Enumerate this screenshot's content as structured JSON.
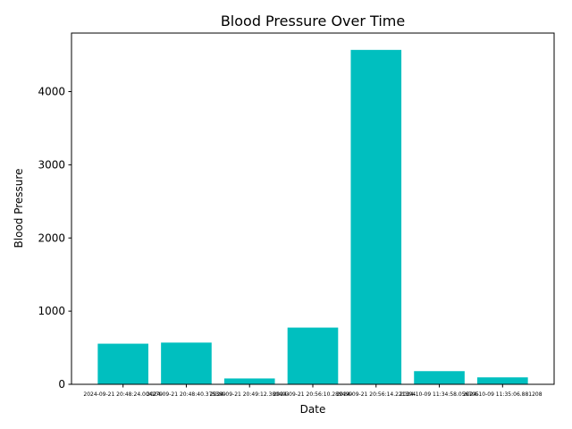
{
  "chart_data": {
    "type": "bar",
    "title": "Blood Pressure Over Time",
    "xlabel": "Date",
    "ylabel": "Blood Pressure",
    "categories": [
      "2024-09-21 20:48:24.004279",
      "2024-09-21 20:48:40.375389",
      "2024-09-21 20:49:12.380403",
      "2024-09-21 20:56:10.289499",
      "2024-09-21 20:56:14.221304",
      "2024-10-09 11:34:58.056705",
      "2024-10-09 11:35:06.881208"
    ],
    "values": [
      555,
      570,
      80,
      775,
      4570,
      180,
      95
    ],
    "ylim": [
      0,
      4800
    ],
    "yticks": [
      0,
      1000,
      2000,
      3000,
      4000
    ],
    "grid": false,
    "legend": "none",
    "bar_color": "#00bfbf"
  }
}
